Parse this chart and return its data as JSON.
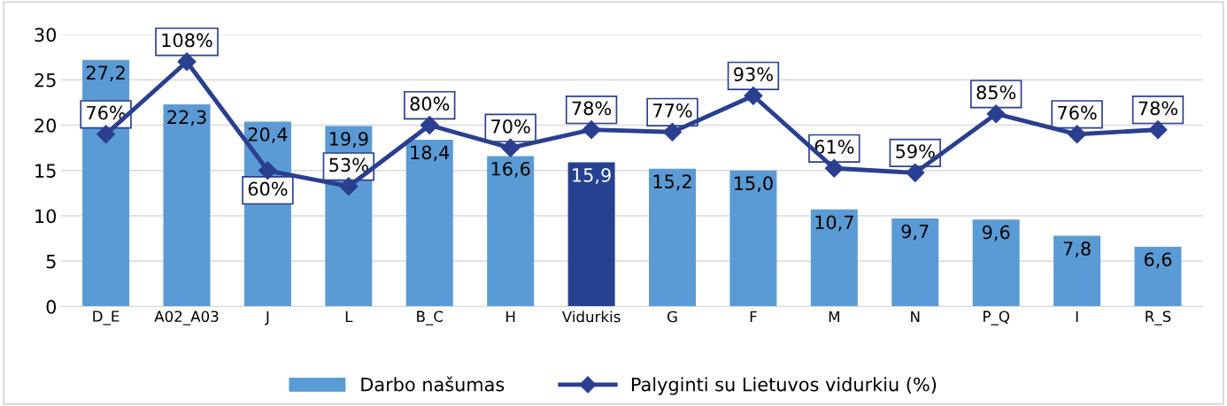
{
  "chart_data": {
    "type": "bar",
    "categories": [
      "D_E",
      "A02_A03",
      "J",
      "L",
      "B_C",
      "H",
      "Vidurkis",
      "G",
      "F",
      "M",
      "N",
      "P_Q",
      "I",
      "R_S"
    ],
    "series": [
      {
        "name": "Darbo našumas",
        "color": "#5b9bd5",
        "colors": [
          "#5b9bd5",
          "#5b9bd5",
          "#5b9bd5",
          "#5b9bd5",
          "#5b9bd5",
          "#5b9bd5",
          "#264191",
          "#5b9bd5",
          "#5b9bd5",
          "#5b9bd5",
          "#5b9bd5",
          "#5b9bd5",
          "#5b9bd5",
          "#5b9bd5"
        ],
        "values": [
          27.2,
          22.3,
          20.4,
          19.9,
          18.4,
          16.6,
          15.9,
          15.2,
          15.0,
          10.7,
          9.7,
          9.6,
          7.8,
          6.6
        ],
        "value_labels": [
          "27,2",
          "22,3",
          "20,4",
          "19,9",
          "18,4",
          "16,6",
          "15,9",
          "15,2",
          "15,0",
          "10,7",
          "9,7",
          "9,6",
          "7,8",
          "6,6"
        ]
      },
      {
        "name": "Palyginti su Lietuvos vidurkiu (%)",
        "type": "line",
        "axis": "y2",
        "color": "#2a3f8f",
        "marker": "diamond",
        "values": [
          76,
          108,
          60,
          53,
          80,
          70,
          78,
          77,
          93,
          61,
          59,
          85,
          76,
          78
        ],
        "value_labels": [
          "76%",
          "108%",
          "60%",
          "53%",
          "80%",
          "70%",
          "78%",
          "77%",
          "93%",
          "61%",
          "59%",
          "85%",
          "76%",
          "78%"
        ]
      }
    ],
    "ylim": [
      0,
      30
    ],
    "yticks": [
      0,
      5,
      10,
      15,
      20,
      25,
      30
    ],
    "y2lim": [
      0,
      120
    ],
    "grid": "y",
    "legend": "bottom"
  }
}
